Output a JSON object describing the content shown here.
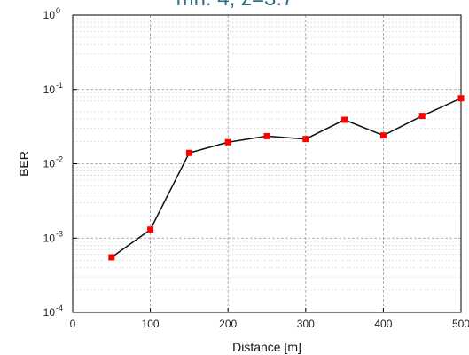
{
  "header_fragment": "mn: 4, z=3.7",
  "chart_data": {
    "type": "line",
    "xlabel": "Distance [m]",
    "ylabel": "BER",
    "xlim": [
      0,
      500
    ],
    "ylim": [
      0.0001,
      1
    ],
    "y_scale": "log",
    "grid": true,
    "x_ticks": [
      0,
      100,
      200,
      300,
      400,
      500
    ],
    "y_ticks": [
      0.0001,
      0.001,
      0.01,
      0.1,
      1
    ],
    "series": [
      {
        "line_color": "#111111",
        "marker_color": "#ff0000",
        "marker": "square",
        "x": [
          50,
          100,
          150,
          200,
          250,
          300,
          350,
          400,
          450,
          500
        ],
        "y": [
          0.00055,
          0.0013,
          0.014,
          0.0195,
          0.0235,
          0.0215,
          0.039,
          0.024,
          0.044,
          0.076
        ]
      }
    ]
  }
}
